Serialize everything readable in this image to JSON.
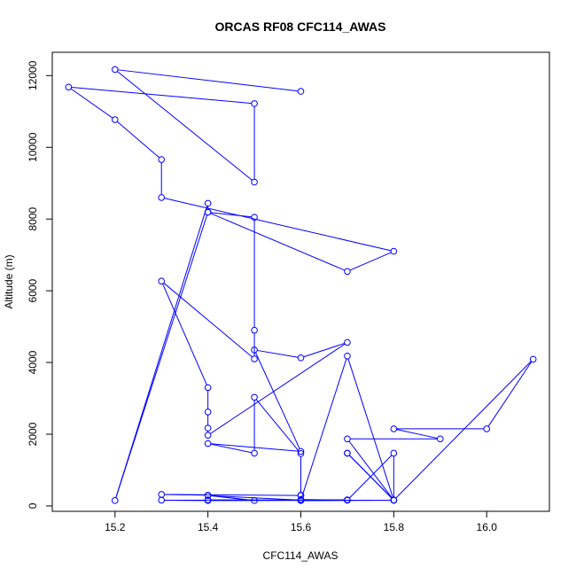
{
  "chart_data": {
    "type": "line",
    "title": "ORCAS RF08 CFC114_AWAS",
    "xlabel": "CFC114_AWAS",
    "ylabel": "Altitude (m)",
    "xlim": [
      15.065,
      16.135
    ],
    "ylim": [
      -150,
      12650
    ],
    "x_ticks": [
      15.2,
      15.4,
      15.6,
      15.8,
      16.0
    ],
    "x_tick_labels": [
      "15.2",
      "15.4",
      "15.6",
      "15.8",
      "16.0"
    ],
    "y_ticks": [
      0,
      2000,
      4000,
      6000,
      8000,
      10000,
      12000
    ],
    "y_tick_labels": [
      "0",
      "2000",
      "4000",
      "6000",
      "8000",
      "10000",
      "12000"
    ],
    "grid": false,
    "color": "#0000ff",
    "series": [
      {
        "marker": "open-circle",
        "x": [
          15.6,
          15.2,
          15.5,
          15.5,
          15.1,
          15.2,
          15.3,
          15.3,
          15.8,
          15.7,
          15.4,
          15.4,
          15.2,
          15.4,
          15.5,
          15.5,
          15.5,
          15.3,
          15.4,
          15.4,
          15.4,
          15.4,
          15.7,
          15.6,
          15.5,
          15.6,
          15.4,
          15.5,
          15.5,
          15.6,
          15.6,
          15.6,
          15.6,
          15.3,
          15.4,
          15.5,
          15.4,
          15.6,
          15.7,
          15.8,
          15.7,
          15.9,
          15.8,
          16.0,
          16.1,
          15.8,
          15.7,
          15.7,
          15.8,
          15.8,
          15.6,
          15.7,
          15.8,
          15.8,
          15.4,
          15.3,
          15.7,
          15.7,
          15.6,
          15.6,
          15.4
        ],
        "y": [
          11560,
          12170,
          9030,
          11220,
          11680,
          10770,
          9660,
          8600,
          7100,
          6540,
          8190,
          8440,
          150,
          8190,
          8050,
          4900,
          4100,
          6270,
          3300,
          2620,
          2170,
          1970,
          4560,
          4130,
          4350,
          1520,
          1740,
          1470,
          3030,
          1460,
          300,
          160,
          290,
          320,
          300,
          150,
          290,
          160,
          4180,
          160,
          1870,
          1870,
          2150,
          2150,
          4090,
          160,
          1470,
          1470,
          160,
          160,
          150,
          160,
          1470,
          160,
          150,
          160,
          170,
          160,
          180,
          160,
          170
        ]
      }
    ]
  }
}
